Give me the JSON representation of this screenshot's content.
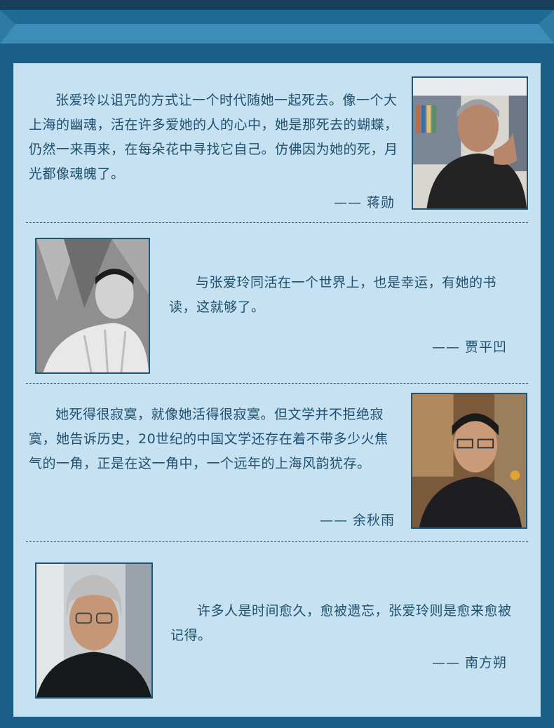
{
  "quotes": [
    {
      "text": "张爱玲以诅咒的方式让一个时代随她一起死去。像一个大上海的幽魂，活在许多爱她的人的心中，她是那死去的蝴蝶，仍然一来再来，在每朵花中寻找它自己。仿佛因为她的死，月光都像魂魄了。",
      "author": "—— 蒋勋",
      "photo_icon": "person-portrait-icon"
    },
    {
      "text": "与张爱玲同活在一个世界上，也是幸运，有她的书读，这就够了。",
      "author": "—— 贾平凹",
      "photo_icon": "person-portrait-icon"
    },
    {
      "text": "她死得很寂寞，就像她活得很寂寞。但文学并不拒绝寂寞，她告诉历史，20世纪的中国文学还存在着不带多少火焦气的一角，正是在这一角中，一个远年的上海风韵犹存。",
      "author": "—— 余秋雨",
      "photo_icon": "person-portrait-icon"
    },
    {
      "text": "许多人是时间愈久，愈被遗忘，张爱玲则是愈来愈被记得。",
      "author": "—— 南方朔",
      "photo_icon": "person-portrait-icon"
    }
  ],
  "colors": {
    "background": "#1a5f86",
    "panel": "#c6e1f2",
    "text": "#1f4f6d",
    "banner_light": "#3c8db7"
  }
}
